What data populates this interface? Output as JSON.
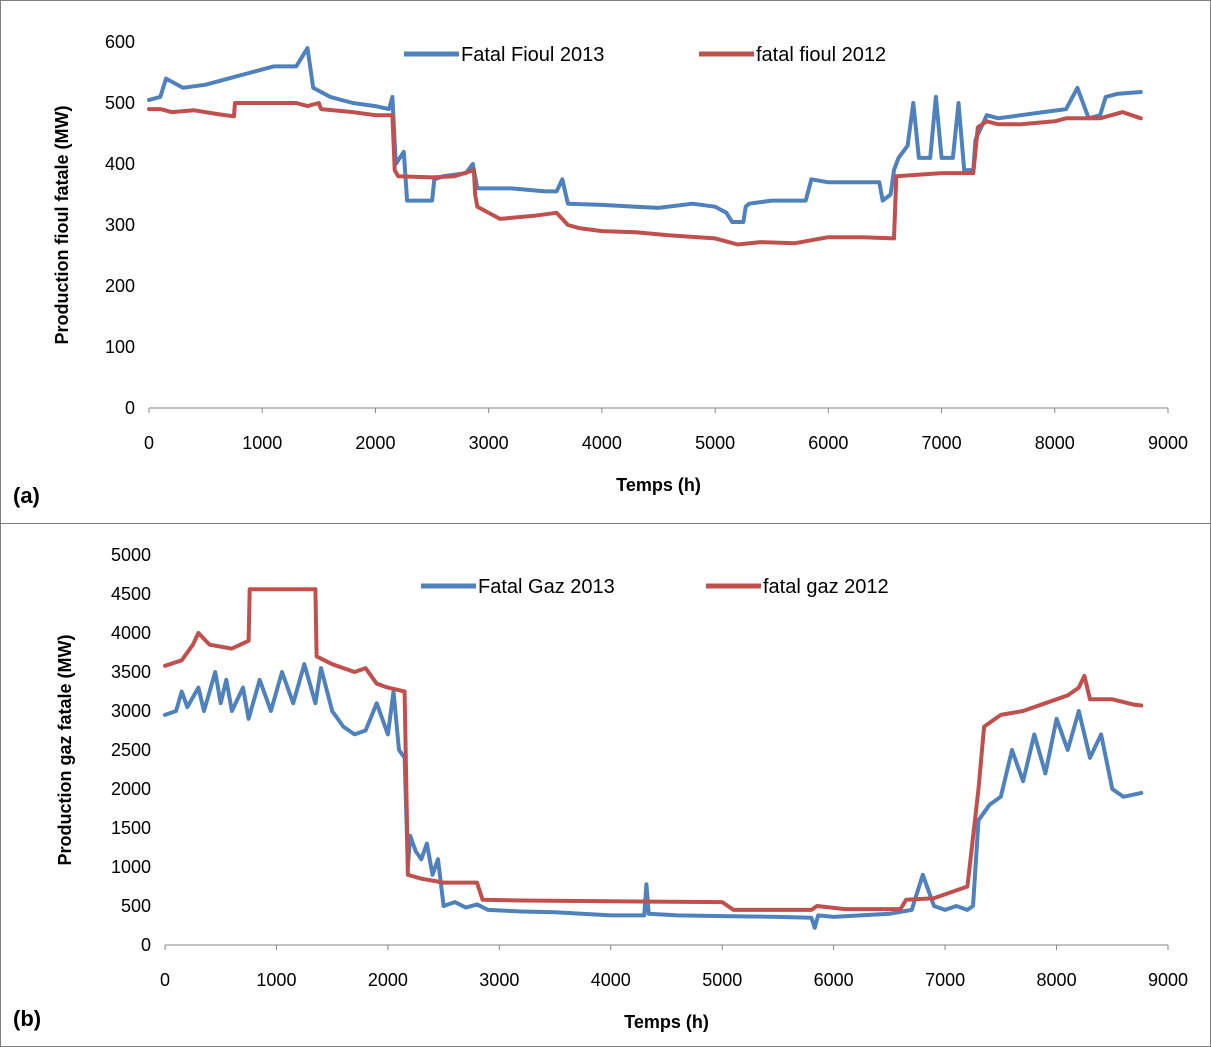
{
  "colors": {
    "series_2013": "#4f81bd",
    "series_2012": "#c0504d",
    "axis": "#868686",
    "border": "#7f7f7f"
  },
  "panels": [
    {
      "label": "(a)"
    },
    {
      "label": "(b)"
    }
  ],
  "chart_data": [
    {
      "type": "line",
      "title": "",
      "xlabel": "Temps (h)",
      "ylabel": "Production fioul fatale (MW)",
      "xlim": [
        0,
        9000
      ],
      "ylim": [
        0,
        600
      ],
      "x_ticks": [
        0,
        1000,
        2000,
        3000,
        4000,
        5000,
        6000,
        7000,
        8000,
        9000
      ],
      "y_ticks": [
        0,
        100,
        200,
        300,
        400,
        500,
        600
      ],
      "grid": false,
      "legend": "top-center",
      "series": [
        {
          "name": "Fatal Fioul 2013",
          "color": "#4f81bd",
          "points": [
            [
              0,
              505
            ],
            [
              100,
              510
            ],
            [
              150,
              540
            ],
            [
              300,
              525
            ],
            [
              500,
              530
            ],
            [
              700,
              540
            ],
            [
              900,
              550
            ],
            [
              1100,
              560
            ],
            [
              1300,
              560
            ],
            [
              1400,
              590
            ],
            [
              1450,
              525
            ],
            [
              1600,
              510
            ],
            [
              1800,
              500
            ],
            [
              2000,
              495
            ],
            [
              2120,
              490
            ],
            [
              2150,
              510
            ],
            [
              2180,
              400
            ],
            [
              2250,
              420
            ],
            [
              2280,
              340
            ],
            [
              2500,
              340
            ],
            [
              2520,
              375
            ],
            [
              2600,
              380
            ],
            [
              2800,
              385
            ],
            [
              2860,
              400
            ],
            [
              2900,
              360
            ],
            [
              3200,
              360
            ],
            [
              3500,
              355
            ],
            [
              3600,
              355
            ],
            [
              3650,
              375
            ],
            [
              3700,
              335
            ],
            [
              4000,
              333
            ],
            [
              4300,
              330
            ],
            [
              4500,
              328
            ],
            [
              4800,
              335
            ],
            [
              5000,
              330
            ],
            [
              5100,
              320
            ],
            [
              5150,
              305
            ],
            [
              5250,
              305
            ],
            [
              5270,
              330
            ],
            [
              5300,
              335
            ],
            [
              5500,
              340
            ],
            [
              5800,
              340
            ],
            [
              5850,
              375
            ],
            [
              6000,
              370
            ],
            [
              6300,
              370
            ],
            [
              6450,
              370
            ],
            [
              6480,
              340
            ],
            [
              6550,
              350
            ],
            [
              6580,
              390
            ],
            [
              6620,
              410
            ],
            [
              6700,
              430
            ],
            [
              6750,
              500
            ],
            [
              6800,
              410
            ],
            [
              6900,
              410
            ],
            [
              6950,
              510
            ],
            [
              7000,
              410
            ],
            [
              7100,
              410
            ],
            [
              7150,
              500
            ],
            [
              7200,
              390
            ],
            [
              7280,
              390
            ],
            [
              7300,
              440
            ],
            [
              7400,
              480
            ],
            [
              7500,
              475
            ],
            [
              7700,
              480
            ],
            [
              7900,
              485
            ],
            [
              8100,
              490
            ],
            [
              8200,
              525
            ],
            [
              8300,
              475
            ],
            [
              8400,
              480
            ],
            [
              8450,
              510
            ],
            [
              8550,
              515
            ],
            [
              8760,
              518
            ]
          ]
        },
        {
          "name": "fatal fioul 2012",
          "color": "#c0504d",
          "points": [
            [
              0,
              490
            ],
            [
              100,
              490
            ],
            [
              200,
              485
            ],
            [
              400,
              488
            ],
            [
              600,
              482
            ],
            [
              750,
              478
            ],
            [
              760,
              500
            ],
            [
              1100,
              500
            ],
            [
              1300,
              500
            ],
            [
              1400,
              495
            ],
            [
              1500,
              500
            ],
            [
              1520,
              490
            ],
            [
              1800,
              485
            ],
            [
              2000,
              480
            ],
            [
              2150,
              480
            ],
            [
              2170,
              390
            ],
            [
              2200,
              380
            ],
            [
              2500,
              378
            ],
            [
              2700,
              380
            ],
            [
              2870,
              390
            ],
            [
              2880,
              350
            ],
            [
              2900,
              330
            ],
            [
              3100,
              310
            ],
            [
              3400,
              315
            ],
            [
              3600,
              320
            ],
            [
              3700,
              300
            ],
            [
              3800,
              295
            ],
            [
              4000,
              290
            ],
            [
              4300,
              288
            ],
            [
              4600,
              283
            ],
            [
              5000,
              278
            ],
            [
              5200,
              268
            ],
            [
              5400,
              272
            ],
            [
              5700,
              270
            ],
            [
              6000,
              280
            ],
            [
              6300,
              280
            ],
            [
              6580,
              278
            ],
            [
              6600,
              380
            ],
            [
              7000,
              385
            ],
            [
              7280,
              385
            ],
            [
              7320,
              460
            ],
            [
              7400,
              470
            ],
            [
              7500,
              465
            ],
            [
              7700,
              465
            ],
            [
              8000,
              470
            ],
            [
              8100,
              475
            ],
            [
              8400,
              475
            ],
            [
              8600,
              485
            ],
            [
              8760,
              475
            ]
          ]
        }
      ]
    },
    {
      "type": "line",
      "title": "",
      "xlabel": "Temps (h)",
      "ylabel": "Production gaz fatale (MW)",
      "xlim": [
        0,
        9000
      ],
      "ylim": [
        0,
        5000
      ],
      "x_ticks": [
        0,
        1000,
        2000,
        3000,
        4000,
        5000,
        6000,
        7000,
        8000,
        9000
      ],
      "y_ticks": [
        0,
        500,
        1000,
        1500,
        2000,
        2500,
        3000,
        3500,
        4000,
        4500,
        5000
      ],
      "grid": false,
      "legend": "top-center",
      "series": [
        {
          "name": "Fatal Gaz 2013",
          "color": "#4f81bd",
          "points": [
            [
              0,
              2950
            ],
            [
              100,
              3000
            ],
            [
              150,
              3250
            ],
            [
              200,
              3050
            ],
            [
              300,
              3300
            ],
            [
              350,
              3000
            ],
            [
              450,
              3500
            ],
            [
              500,
              3100
            ],
            [
              550,
              3400
            ],
            [
              600,
              3000
            ],
            [
              700,
              3300
            ],
            [
              750,
              2900
            ],
            [
              850,
              3400
            ],
            [
              950,
              3000
            ],
            [
              1050,
              3500
            ],
            [
              1150,
              3100
            ],
            [
              1250,
              3600
            ],
            [
              1350,
              3100
            ],
            [
              1400,
              3550
            ],
            [
              1500,
              3000
            ],
            [
              1600,
              2800
            ],
            [
              1700,
              2700
            ],
            [
              1800,
              2750
            ],
            [
              1900,
              3100
            ],
            [
              2000,
              2700
            ],
            [
              2050,
              3250
            ],
            [
              2100,
              2500
            ],
            [
              2150,
              2400
            ],
            [
              2180,
              1000
            ],
            [
              2200,
              1400
            ],
            [
              2250,
              1200
            ],
            [
              2300,
              1100
            ],
            [
              2350,
              1300
            ],
            [
              2400,
              900
            ],
            [
              2450,
              1100
            ],
            [
              2500,
              500
            ],
            [
              2600,
              550
            ],
            [
              2700,
              480
            ],
            [
              2800,
              520
            ],
            [
              2900,
              450
            ],
            [
              3200,
              430
            ],
            [
              3500,
              420
            ],
            [
              4000,
              380
            ],
            [
              4300,
              380
            ],
            [
              4320,
              780
            ],
            [
              4340,
              400
            ],
            [
              4600,
              380
            ],
            [
              5000,
              370
            ],
            [
              5500,
              360
            ],
            [
              5800,
              350
            ],
            [
              5830,
              220
            ],
            [
              5860,
              380
            ],
            [
              6000,
              360
            ],
            [
              6500,
              400
            ],
            [
              6700,
              450
            ],
            [
              6800,
              900
            ],
            [
              6900,
              500
            ],
            [
              7000,
              450
            ],
            [
              7100,
              500
            ],
            [
              7200,
              450
            ],
            [
              7250,
              500
            ],
            [
              7300,
              1600
            ],
            [
              7400,
              1800
            ],
            [
              7500,
              1900
            ],
            [
              7600,
              2500
            ],
            [
              7700,
              2100
            ],
            [
              7800,
              2700
            ],
            [
              7900,
              2200
            ],
            [
              8000,
              2900
            ],
            [
              8100,
              2500
            ],
            [
              8200,
              3000
            ],
            [
              8300,
              2400
            ],
            [
              8400,
              2700
            ],
            [
              8500,
              2000
            ],
            [
              8600,
              1900
            ],
            [
              8760,
              1950
            ]
          ]
        },
        {
          "name": "fatal gaz 2012",
          "color": "#c0504d",
          "points": [
            [
              0,
              3580
            ],
            [
              150,
              3650
            ],
            [
              250,
              3850
            ],
            [
              300,
              4000
            ],
            [
              400,
              3850
            ],
            [
              600,
              3800
            ],
            [
              750,
              3900
            ],
            [
              760,
              4560
            ],
            [
              1350,
              4560
            ],
            [
              1360,
              3700
            ],
            [
              1500,
              3600
            ],
            [
              1700,
              3500
            ],
            [
              1800,
              3550
            ],
            [
              1900,
              3350
            ],
            [
              2000,
              3300
            ],
            [
              2150,
              3250
            ],
            [
              2180,
              900
            ],
            [
              2300,
              850
            ],
            [
              2500,
              800
            ],
            [
              2800,
              800
            ],
            [
              2850,
              580
            ],
            [
              3200,
              570
            ],
            [
              4000,
              560
            ],
            [
              5000,
              550
            ],
            [
              5100,
              450
            ],
            [
              5800,
              450
            ],
            [
              5850,
              500
            ],
            [
              6100,
              460
            ],
            [
              6600,
              460
            ],
            [
              6650,
              580
            ],
            [
              6900,
              600
            ],
            [
              7100,
              700
            ],
            [
              7200,
              750
            ],
            [
              7300,
              2000
            ],
            [
              7350,
              2800
            ],
            [
              7500,
              2950
            ],
            [
              7700,
              3000
            ],
            [
              7900,
              3100
            ],
            [
              8100,
              3200
            ],
            [
              8200,
              3300
            ],
            [
              8250,
              3450
            ],
            [
              8300,
              3150
            ],
            [
              8500,
              3150
            ],
            [
              8700,
              3080
            ],
            [
              8760,
              3070
            ]
          ]
        }
      ]
    }
  ]
}
